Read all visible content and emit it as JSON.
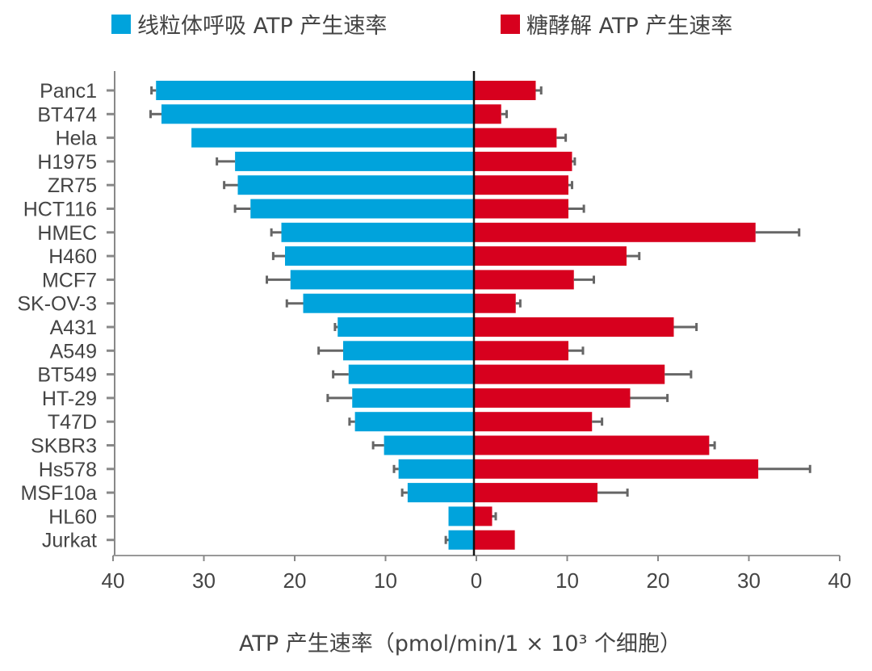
{
  "chart_data": {
    "type": "bar",
    "orientation": "horizontal-diverging",
    "categories": [
      "Panc1",
      "BT474",
      "Hela",
      "H1975",
      "ZR75",
      "HCT116",
      "HMEC",
      "H460",
      "MCF7",
      "SK-OV-3",
      "A431",
      "A549",
      "BT549",
      "HT-29",
      "T47D",
      "SKBR3",
      "Hs578",
      "MSF10a",
      "HL60",
      "Jurkat"
    ],
    "series": [
      {
        "name": "线粒体呼吸 ATP 产生速率",
        "color": "#00a3dc",
        "direction": "left",
        "values": [
          35.0,
          34.4,
          31.1,
          26.3,
          26.0,
          24.6,
          21.2,
          20.8,
          20.2,
          18.8,
          15.0,
          14.4,
          13.8,
          13.4,
          13.1,
          9.9,
          8.3,
          7.3,
          2.8,
          2.8
        ],
        "errors": [
          0.5,
          1.2,
          0,
          2.0,
          1.5,
          1.7,
          1.1,
          1.3,
          2.6,
          1.8,
          0.3,
          2.7,
          1.7,
          2.7,
          0.6,
          1.2,
          0.5,
          0.6,
          0,
          0.3
        ]
      },
      {
        "name": "糖酵解 ATP 产生速率",
        "color": "#d7001e",
        "direction": "right",
        "values": [
          6.8,
          3.0,
          9.1,
          10.8,
          10.4,
          10.4,
          31.0,
          16.8,
          11.0,
          4.6,
          22.0,
          10.4,
          21.0,
          17.2,
          13.0,
          25.9,
          31.3,
          13.6,
          2.0,
          4.5
        ],
        "errors": [
          0.6,
          0.6,
          1.0,
          0.3,
          0.4,
          1.7,
          4.8,
          1.4,
          2.2,
          0.5,
          2.5,
          1.6,
          2.9,
          4.1,
          1.1,
          0.6,
          5.7,
          3.3,
          0.4,
          0
        ]
      }
    ],
    "xlabel": "ATP 产生速率（pmol/min/1 × 10³ 个细胞）",
    "xlim": [
      -40,
      40
    ],
    "xticks": [
      "40",
      "30",
      "20",
      "10",
      "0",
      "10",
      "20",
      "30",
      "40"
    ],
    "legend_position": "top",
    "grid": false
  }
}
